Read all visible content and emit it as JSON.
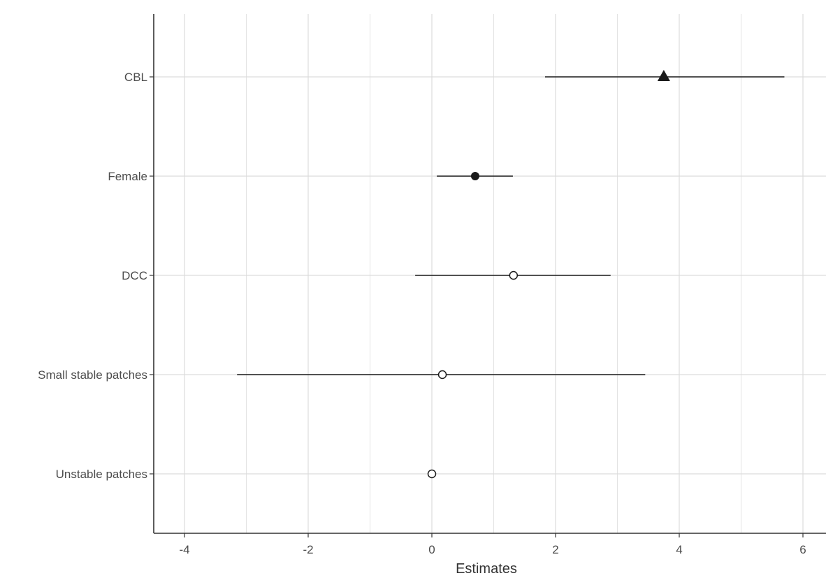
{
  "chart_data": {
    "type": "forest",
    "title": "",
    "xlabel": "Estimates",
    "ylabel": "",
    "xlim": [
      -4.5,
      6.35
    ],
    "x_ticks": [
      -4,
      -2,
      0,
      2,
      4,
      6
    ],
    "x_tick_labels": [
      "-4",
      "-2",
      "0",
      "2",
      "4",
      "6"
    ],
    "categories": [
      "CBL",
      "Female",
      "DCC",
      "Small stable patches",
      "Unstable patches"
    ],
    "estimates": [
      3.75,
      0.7,
      1.32,
      0.17,
      0.0
    ],
    "lower": [
      1.83,
      0.08,
      -0.27,
      -3.15,
      null
    ],
    "upper": [
      5.7,
      1.31,
      2.89,
      3.45,
      null
    ],
    "markers": [
      "filled-triangle",
      "filled-circle",
      "open-circle",
      "open-circle",
      "open-circle"
    ],
    "grid": true,
    "colors": {
      "mark": "#1a1a1a",
      "grid": "#dcdcdc",
      "axis": "#333333",
      "text": "#4d4d4d"
    }
  }
}
